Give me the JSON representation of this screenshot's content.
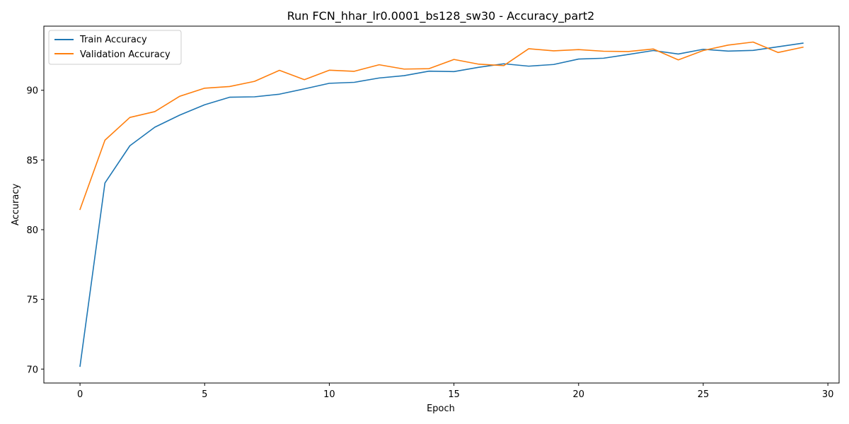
{
  "chart_data": {
    "type": "line",
    "title": "Run FCN_hhar_lr0.0001_bs128_sw30 - Accuracy_part2",
    "xlabel": "Epoch",
    "ylabel": "Accuracy",
    "xlim": [
      -1.45,
      30.45
    ],
    "ylim": [
      69.0,
      94.6
    ],
    "xticks": [
      0,
      5,
      10,
      15,
      20,
      25,
      30
    ],
    "yticks": [
      70,
      75,
      80,
      85,
      90
    ],
    "grid": false,
    "legend_position": "upper-left",
    "x": [
      0,
      1,
      2,
      3,
      4,
      5,
      6,
      7,
      8,
      9,
      10,
      11,
      12,
      13,
      14,
      15,
      16,
      17,
      18,
      19,
      20,
      21,
      22,
      23,
      24,
      25,
      26,
      27,
      28,
      29
    ],
    "series": [
      {
        "name": "Train Accuracy",
        "color": "#1f77b4",
        "values": [
          70.2,
          83.35,
          86.02,
          87.35,
          88.22,
          88.96,
          89.5,
          89.53,
          89.72,
          90.1,
          90.5,
          90.57,
          90.88,
          91.05,
          91.37,
          91.34,
          91.65,
          91.9,
          91.73,
          91.85,
          92.24,
          92.3,
          92.57,
          92.85,
          92.6,
          92.94,
          92.81,
          92.86,
          93.12,
          93.38
        ]
      },
      {
        "name": "Validation Accuracy",
        "color": "#ff7f0e",
        "values": [
          81.45,
          86.42,
          88.05,
          88.47,
          89.57,
          90.15,
          90.27,
          90.64,
          91.43,
          90.76,
          91.44,
          91.36,
          91.83,
          91.52,
          91.55,
          92.21,
          91.87,
          91.77,
          92.98,
          92.83,
          92.92,
          92.8,
          92.78,
          92.96,
          92.18,
          92.85,
          93.24,
          93.46,
          92.71,
          93.09
        ]
      }
    ]
  }
}
